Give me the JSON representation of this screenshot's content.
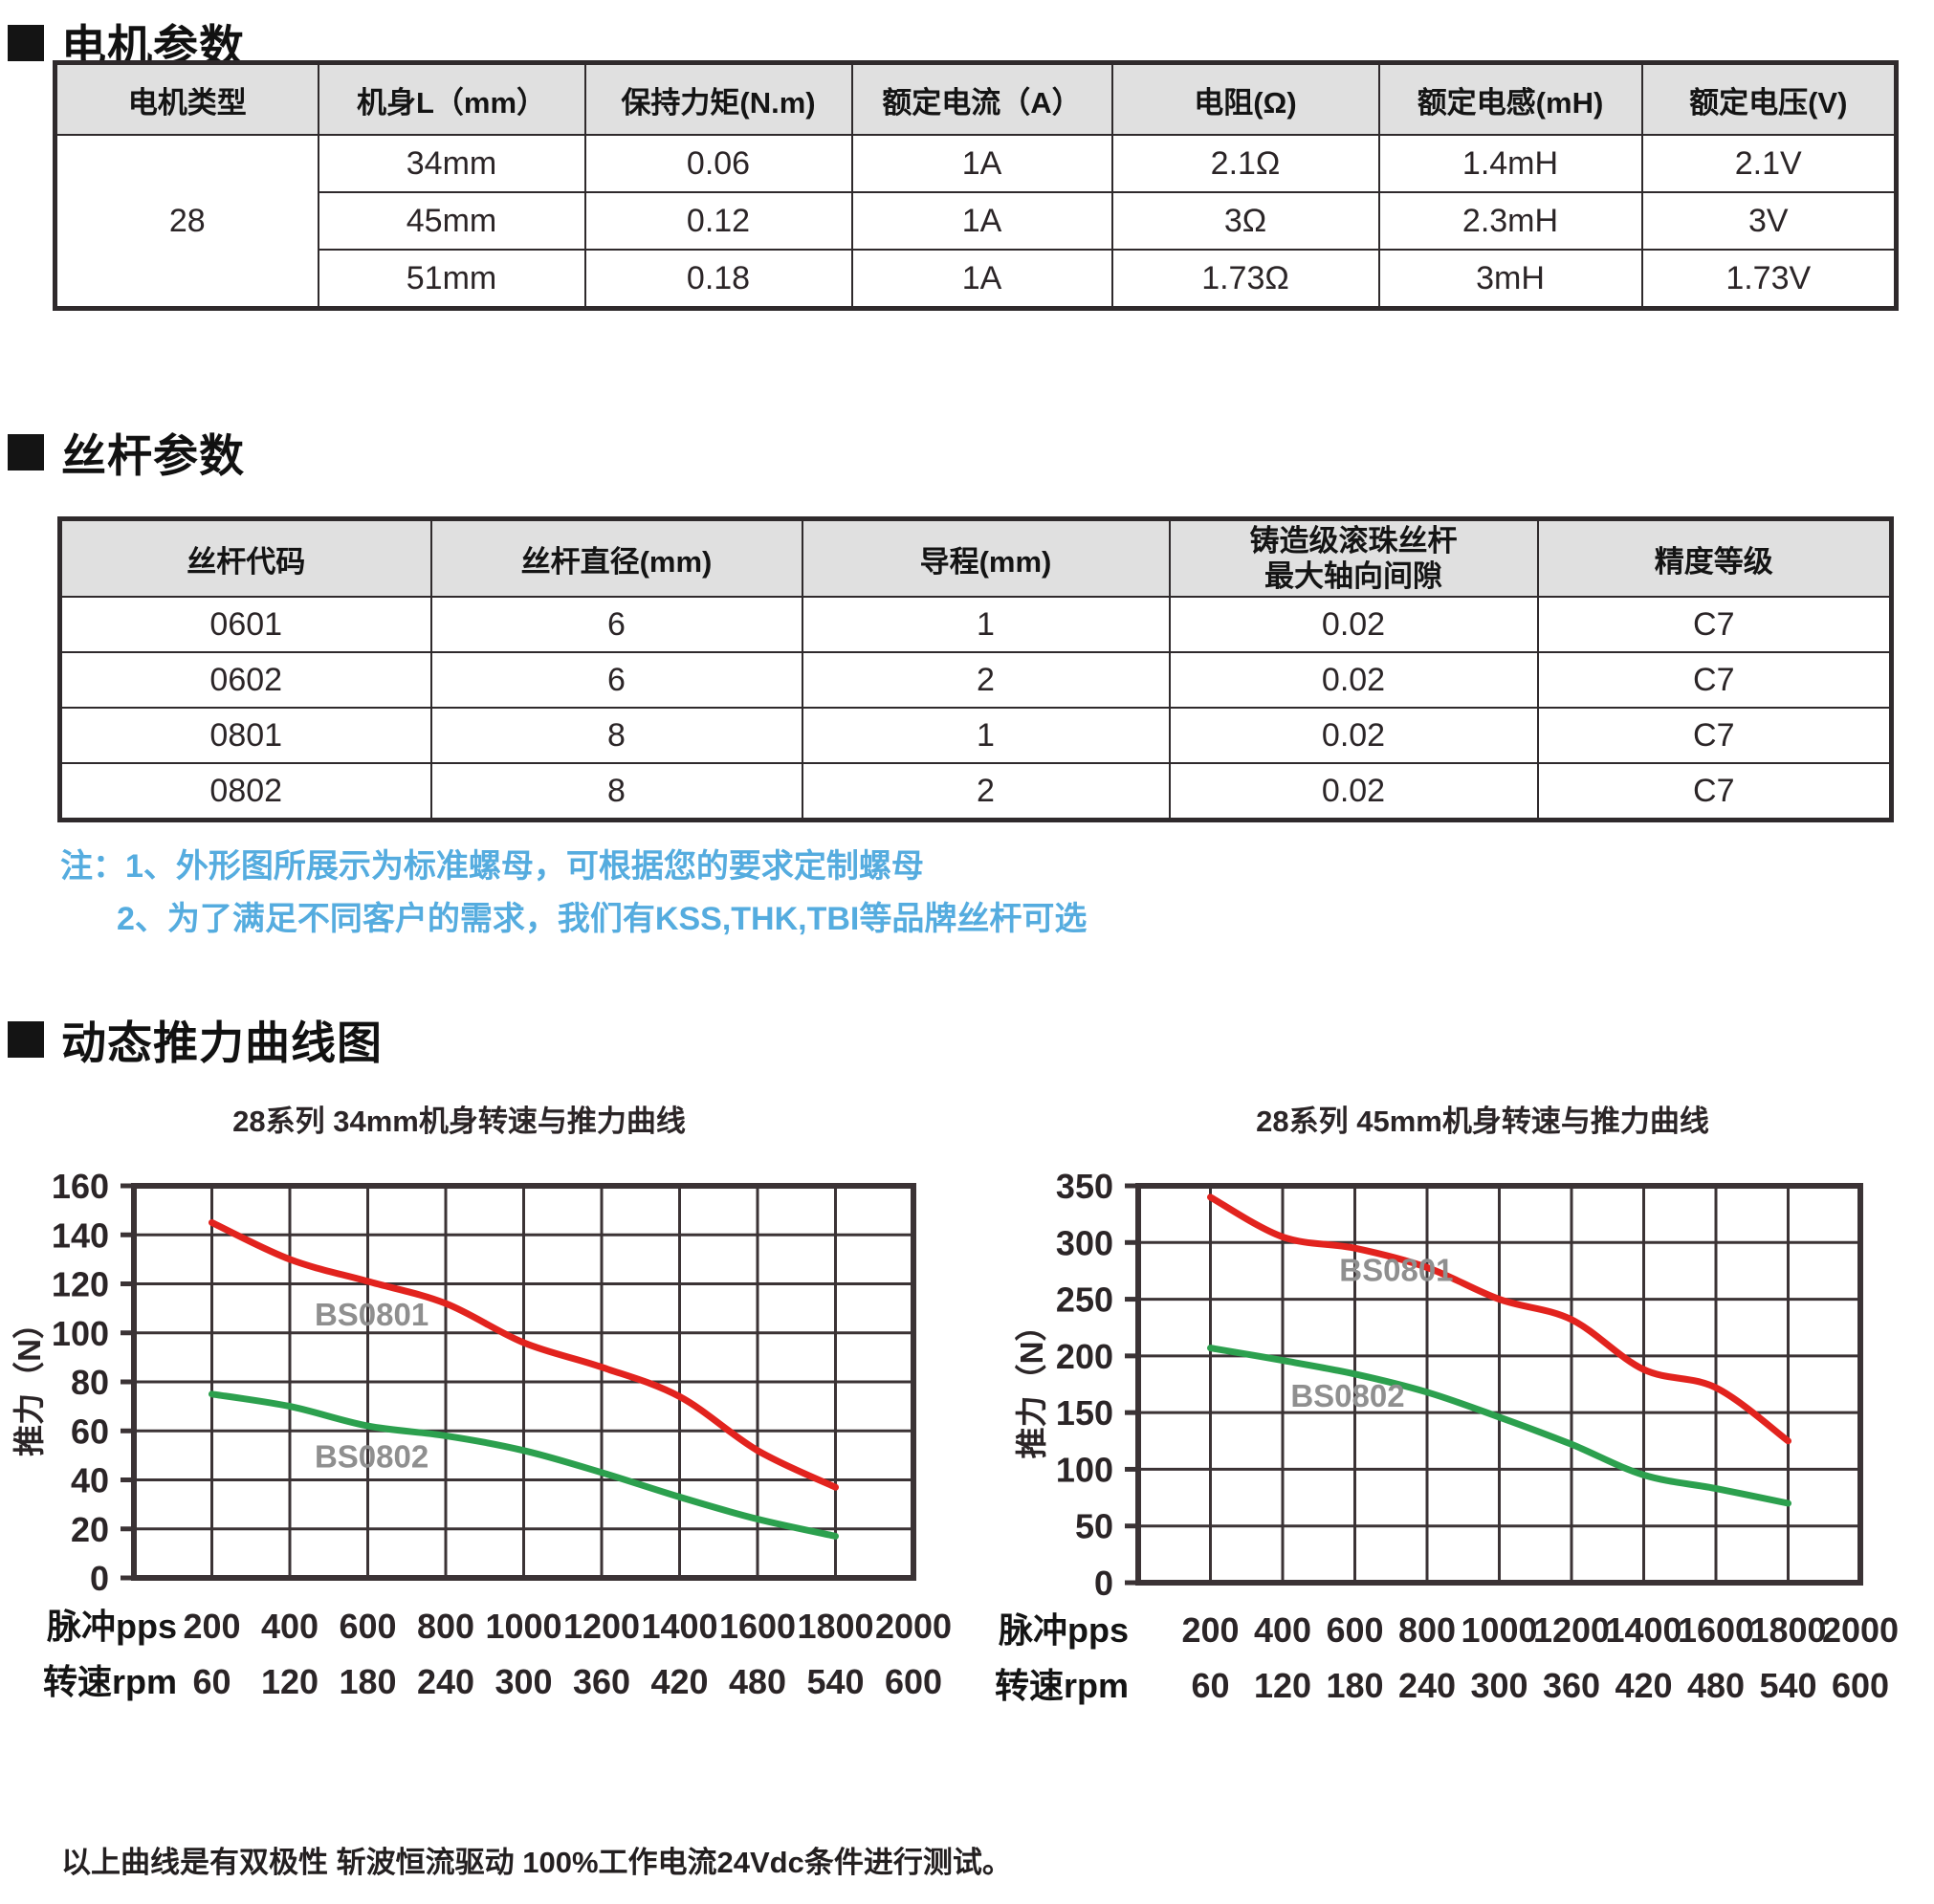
{
  "sections": {
    "motor": {
      "title": "电机参数"
    },
    "screw": {
      "title": "丝杆参数"
    },
    "curves": {
      "title": "动态推力曲线图"
    }
  },
  "motor_table": {
    "headers": [
      "电机类型",
      "机身L（mm）",
      "保持力矩(N.m)",
      "额定电流（A）",
      "电阻(Ω)",
      "额定电感(mH)",
      "额定电压(V)"
    ],
    "motor_type": "28",
    "rows": [
      [
        "34mm",
        "0.06",
        "1A",
        "2.1Ω",
        "1.4mH",
        "2.1V"
      ],
      [
        "45mm",
        "0.12",
        "1A",
        "3Ω",
        "2.3mH",
        "3V"
      ],
      [
        "51mm",
        "0.18",
        "1A",
        "1.73Ω",
        "3mH",
        "1.73V"
      ]
    ]
  },
  "screw_table": {
    "headers": [
      "丝杆代码",
      "丝杆直径(mm)",
      "导程(mm)",
      "铸造级滚珠丝杆\n最大轴向间隙",
      "精度等级"
    ],
    "rows": [
      [
        "0601",
        "6",
        "1",
        "0.02",
        "C7"
      ],
      [
        "0602",
        "6",
        "2",
        "0.02",
        "C7"
      ],
      [
        "0801",
        "8",
        "1",
        "0.02",
        "C7"
      ],
      [
        "0802",
        "8",
        "2",
        "0.02",
        "C7"
      ]
    ]
  },
  "notes": {
    "color": "#55ACDF",
    "line1": "注：1、外形图所展示为标准螺母，可根据您的要求定制螺母",
    "line2": "2、为了满足不同客户的需求，我们有KSS,THK,TBI等品牌丝杆可选"
  },
  "footer_note": "以上曲线是有双极性 斩波恒流驱动 100%工作电流24Vdc条件进行测试。",
  "chart_data": [
    {
      "type": "line",
      "title": "28系列 34mm机身转速与推力曲线",
      "ylabel": "推力（N）",
      "x_row_labels": [
        "脉冲pps",
        "转速rpm"
      ],
      "x_pps": [
        200,
        400,
        600,
        800,
        1000,
        1200,
        1400,
        1600,
        1800,
        2000
      ],
      "x_rpm": [
        60,
        120,
        180,
        240,
        300,
        360,
        420,
        480,
        540,
        600
      ],
      "xlim": [
        0,
        2000
      ],
      "ylim": [
        0,
        160
      ],
      "ystep": 20,
      "grid": true,
      "series": [
        {
          "name": "BS0801",
          "color": "#e2231e",
          "x": [
            200,
            400,
            600,
            800,
            1000,
            1200,
            1400,
            1600,
            1800
          ],
          "values": [
            145,
            130,
            121,
            112,
            96,
            86,
            74,
            52,
            37
          ],
          "label_at": [
            610,
            103
          ]
        },
        {
          "name": "BS0802",
          "color": "#2ca04e",
          "x": [
            200,
            400,
            600,
            800,
            1000,
            1200,
            1400,
            1600,
            1800
          ],
          "values": [
            75,
            70,
            62,
            58,
            52,
            43,
            33,
            24,
            17
          ],
          "label_at": [
            610,
            45
          ]
        }
      ]
    },
    {
      "type": "line",
      "title": "28系列 45mm机身转速与推力曲线",
      "ylabel": "推力（N）",
      "x_row_labels": [
        "脉冲pps",
        "转速rpm"
      ],
      "x_pps": [
        200,
        400,
        600,
        800,
        1000,
        1200,
        1400,
        1600,
        1800,
        2000
      ],
      "x_rpm": [
        60,
        120,
        180,
        240,
        300,
        360,
        420,
        480,
        540,
        600
      ],
      "xlim": [
        0,
        2000
      ],
      "ylim": [
        0,
        350
      ],
      "ystep": 50,
      "grid": true,
      "series": [
        {
          "name": "BS0801",
          "color": "#e2231e",
          "x": [
            200,
            400,
            600,
            800,
            1000,
            1200,
            1400,
            1600,
            1800
          ],
          "values": [
            340,
            305,
            295,
            278,
            250,
            232,
            188,
            172,
            125
          ],
          "label_at": [
            715,
            266
          ]
        },
        {
          "name": "BS0802",
          "color": "#2ca04e",
          "x": [
            200,
            400,
            600,
            800,
            1000,
            1200,
            1400,
            1600,
            1800
          ],
          "values": [
            207,
            196,
            184,
            168,
            146,
            122,
            95,
            83,
            70
          ],
          "label_at": [
            580,
            155
          ]
        }
      ]
    }
  ]
}
